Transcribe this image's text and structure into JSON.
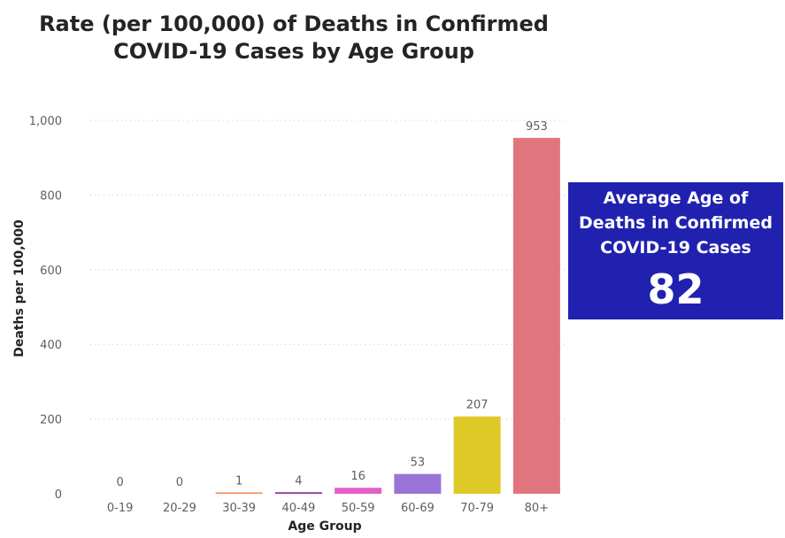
{
  "title_lines": [
    "Rate (per 100,000) of Deaths in Confirmed",
    "COVID-19 Cases by Age Group"
  ],
  "card": {
    "label_lines": [
      "Average Age of",
      "Deaths in Confirmed",
      "COVID-19 Cases"
    ],
    "value": "82",
    "background": "#2121b0"
  },
  "chart_data": {
    "type": "bar",
    "title": "Rate (per 100,000) of Deaths in Confirmed COVID-19 Cases by Age Group",
    "xlabel": "Age Group",
    "ylabel": "Deaths per 100,000",
    "categories": [
      "0-19",
      "20-29",
      "30-39",
      "40-49",
      "50-59",
      "60-69",
      "70-79",
      "80+"
    ],
    "values": [
      0,
      0,
      1,
      4,
      16,
      53,
      207,
      953
    ],
    "data_labels": [
      "0",
      "0",
      "1",
      "4",
      "16",
      "53",
      "207",
      "953"
    ],
    "bar_colors": [
      "#4a73b8",
      "#3b3bd6",
      "#f08a4b",
      "#8e2a99",
      "#e35fc5",
      "#9b74d9",
      "#dfc927",
      "#e0757e"
    ],
    "ylim": [
      0,
      1000
    ],
    "y_ticks": [
      0,
      200,
      400,
      600,
      800,
      1000
    ],
    "y_tick_labels": [
      "0",
      "200",
      "400",
      "600",
      "800",
      "1,000"
    ],
    "grid": true,
    "legend": "none"
  }
}
